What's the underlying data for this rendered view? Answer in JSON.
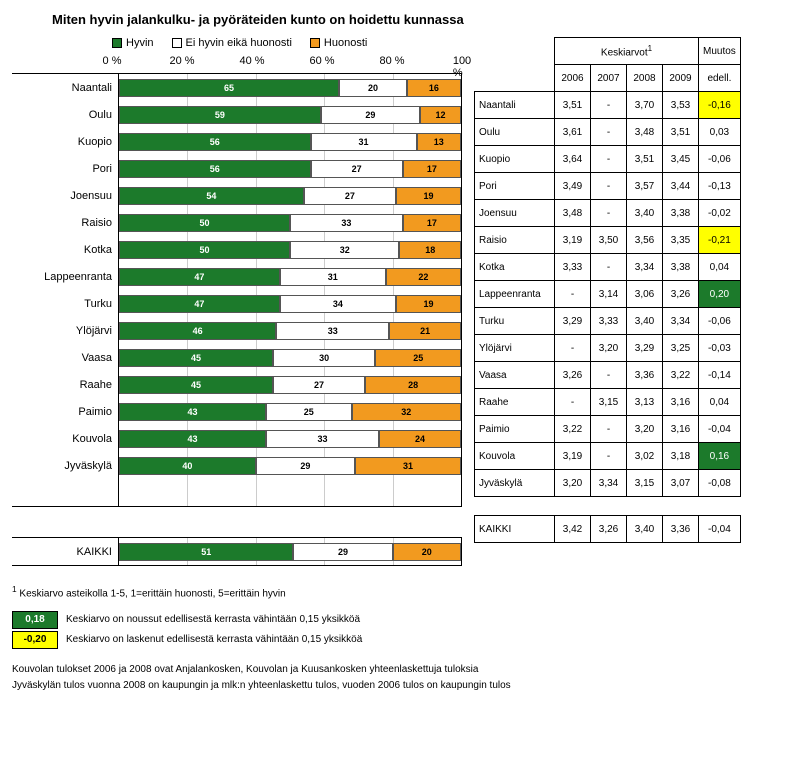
{
  "title": "Miten hyvin jalankulku- ja pyöräteiden kunto on hoidettu kunnassa",
  "colors": {
    "good": "#1c7a2b",
    "neutral": "#ffffff",
    "bad": "#f29a1f",
    "grid": "#cccccc",
    "hl_up_bg": "#1c7a2b",
    "hl_down_bg": "#ffff00"
  },
  "legend": {
    "good": "Hyvin",
    "neutral": "Ei hyvin eikä huonosti",
    "bad": "Huonosti"
  },
  "axis": {
    "ticks": [
      "0 %",
      "20 %",
      "40 %",
      "60 %",
      "80 %",
      "100 %"
    ]
  },
  "table_headers": {
    "averages": "Keskiarvot",
    "sup": "1",
    "years": [
      "2006",
      "2007",
      "2008",
      "2009"
    ],
    "change": "Muutos",
    "change_sub": "edell."
  },
  "rows": [
    {
      "name": "Naantali",
      "bars": [
        65,
        20,
        16
      ],
      "avg": [
        "3,51",
        "-",
        "3,70",
        "3,53"
      ],
      "chg": "-0,16",
      "hl": "down"
    },
    {
      "name": "Oulu",
      "bars": [
        59,
        29,
        12
      ],
      "avg": [
        "3,61",
        "-",
        "3,48",
        "3,51"
      ],
      "chg": "0,03",
      "hl": ""
    },
    {
      "name": "Kuopio",
      "bars": [
        56,
        31,
        13
      ],
      "avg": [
        "3,64",
        "-",
        "3,51",
        "3,45"
      ],
      "chg": "-0,06",
      "hl": ""
    },
    {
      "name": "Pori",
      "bars": [
        56,
        27,
        17
      ],
      "avg": [
        "3,49",
        "-",
        "3,57",
        "3,44"
      ],
      "chg": "-0,13",
      "hl": ""
    },
    {
      "name": "Joensuu",
      "bars": [
        54,
        27,
        19
      ],
      "avg": [
        "3,48",
        "-",
        "3,40",
        "3,38"
      ],
      "chg": "-0,02",
      "hl": ""
    },
    {
      "name": "Raisio",
      "bars": [
        50,
        33,
        17
      ],
      "avg": [
        "3,19",
        "3,50",
        "3,56",
        "3,35"
      ],
      "chg": "-0,21",
      "hl": "down"
    },
    {
      "name": "Kotka",
      "bars": [
        50,
        32,
        18
      ],
      "avg": [
        "3,33",
        "-",
        "3,34",
        "3,38"
      ],
      "chg": "0,04",
      "hl": ""
    },
    {
      "name": "Lappeenranta",
      "bars": [
        47,
        31,
        22
      ],
      "avg": [
        "-",
        "3,14",
        "3,06",
        "3,26"
      ],
      "chg": "0,20",
      "hl": "up"
    },
    {
      "name": "Turku",
      "bars": [
        47,
        34,
        19
      ],
      "avg": [
        "3,29",
        "3,33",
        "3,40",
        "3,34"
      ],
      "chg": "-0,06",
      "hl": ""
    },
    {
      "name": "Ylöjärvi",
      "bars": [
        46,
        33,
        21
      ],
      "avg": [
        "-",
        "3,20",
        "3,29",
        "3,25"
      ],
      "chg": "-0,03",
      "hl": ""
    },
    {
      "name": "Vaasa",
      "bars": [
        45,
        30,
        25
      ],
      "avg": [
        "3,26",
        "-",
        "3,36",
        "3,22"
      ],
      "chg": "-0,14",
      "hl": ""
    },
    {
      "name": "Raahe",
      "bars": [
        45,
        27,
        28
      ],
      "avg": [
        "-",
        "3,15",
        "3,13",
        "3,16"
      ],
      "chg": "0,04",
      "hl": ""
    },
    {
      "name": "Paimio",
      "bars": [
        43,
        25,
        32
      ],
      "avg": [
        "3,22",
        "-",
        "3,20",
        "3,16"
      ],
      "chg": "-0,04",
      "hl": ""
    },
    {
      "name": "Kouvola",
      "bars": [
        43,
        33,
        24
      ],
      "avg": [
        "3,19",
        "-",
        "3,02",
        "3,18"
      ],
      "chg": "0,16",
      "hl": "up"
    },
    {
      "name": "Jyväskylä",
      "bars": [
        40,
        29,
        31
      ],
      "avg": [
        "3,20",
        "3,34",
        "3,15",
        "3,07"
      ],
      "chg": "-0,08",
      "hl": ""
    }
  ],
  "total": {
    "name": "KAIKKI",
    "bars": [
      51,
      29,
      20
    ],
    "avg": [
      "3,42",
      "3,26",
      "3,40",
      "3,36"
    ],
    "chg": "-0,04",
    "hl": ""
  },
  "footnote_sup": "1",
  "footnote": "Keskiarvo asteikolla 1-5, 1=erittäin huonosti, 5=erittäin hyvin",
  "legend2_up": {
    "val": "0,18",
    "text": "Keskiarvo on noussut edellisestä kerrasta vähintään 0,15 yksikköä"
  },
  "legend2_down": {
    "val": "-0,20",
    "text": "Keskiarvo on laskenut edellisestä kerrasta vähintään 0,15 yksikköä"
  },
  "note1": "Kouvolan tulokset 2006 ja 2008 ovat Anjalankosken, Kouvolan ja Kuusankosken yhteenlaskettuja tuloksia",
  "note2": "Jyväskylän tulos vuonna 2008 on kaupungin ja mlk:n yhteenlaskettu tulos, vuoden 2006 tulos on kaupungin tulos"
}
